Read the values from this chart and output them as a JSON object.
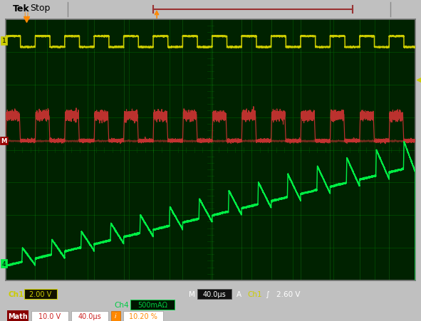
{
  "outer_bg": "#c0c0c0",
  "screen_bg": "#002200",
  "grid_color": "#005500",
  "header_bg": "#d8d8d8",
  "yellow_color": "#cccc00",
  "red_color": "#cc3333",
  "green_color": "#00dd00",
  "bright_green": "#00ee44",
  "orange_color": "#ff8800",
  "dark_orange": "#cc6600",
  "white_color": "#ffffff",
  "black_color": "#000000",
  "label_green": "#00cc44",
  "num_hdivs": 10,
  "num_vdivs": 8,
  "ch1_scale": "2.00 V",
  "ch4_scale": "500mAΩ",
  "math_v": "10.0 V",
  "math_t": "40.0μs",
  "math_pct": "10.20 %",
  "time_div": "M 40.0μs",
  "trig_v": "2.60 V"
}
